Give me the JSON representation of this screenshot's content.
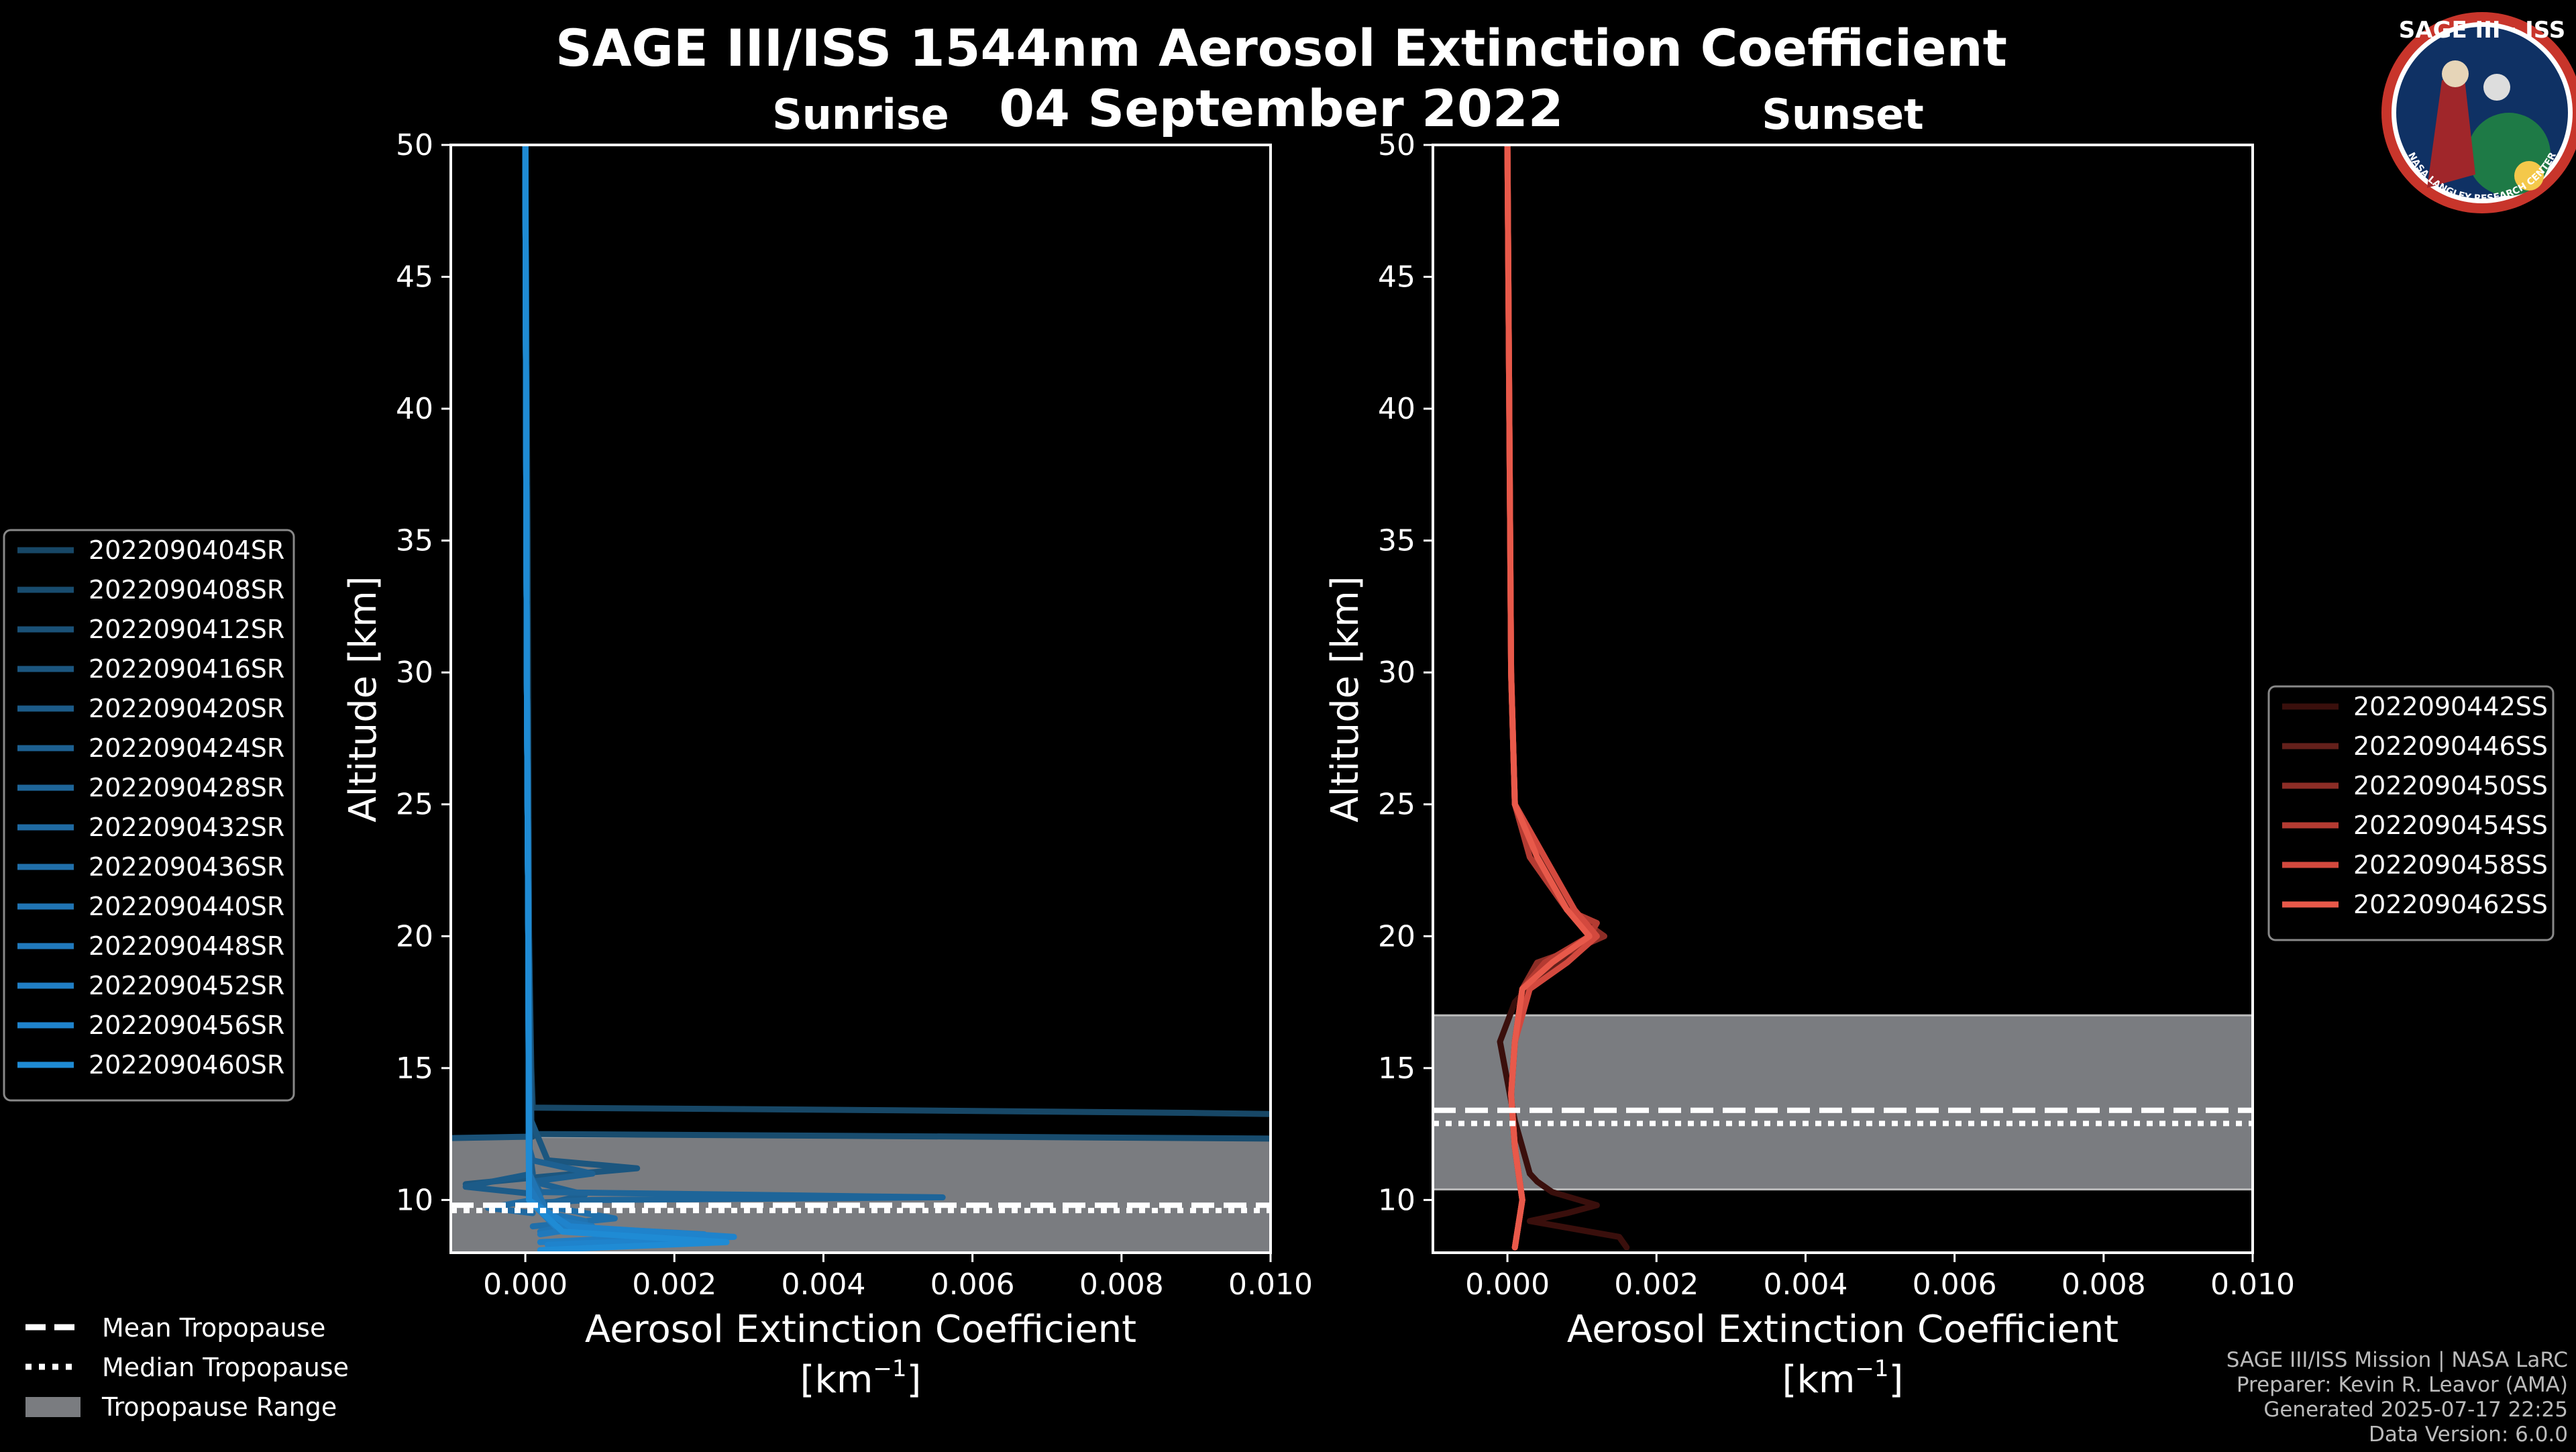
{
  "title": "SAGE III/ISS 1544nm Aerosol Extinction Coefficient",
  "date": "04 September 2022",
  "logo": {
    "text": "SAGE III · ISS",
    "ring_text": "NASA LANGLEY RESEARCH CENTER"
  },
  "footer": [
    "SAGE III/ISS Mission | NASA LaRC",
    "Preparer: Kevin R. Leavor (AMA)",
    "Generated 2025-07-17 22:25",
    "Data Version: 6.0.0"
  ],
  "tropopause_legend": [
    "Mean Tropopause",
    "Median Tropopause",
    "Tropopause Range"
  ],
  "colors": {
    "sunrise": "#1f9ad6",
    "sunset": "#e8594a",
    "range": "#7a7c80"
  },
  "chart_data": [
    {
      "type": "line",
      "subtitle": "Sunrise",
      "xlabel": "Aerosol Extinction Coefficient",
      "xunit_base": "[km",
      "xunit_exp": "−1",
      "xunit_end": "]",
      "ylabel": "Altitude [km]",
      "xlim": [
        -0.001,
        0.01
      ],
      "ylim": [
        8,
        50
      ],
      "xticks": [
        "0.000",
        "0.002",
        "0.004",
        "0.006",
        "0.008",
        "0.010"
      ],
      "xtick_values": [
        0,
        0.002,
        0.004,
        0.006,
        0.008,
        0.01
      ],
      "yticks": [
        10,
        15,
        20,
        25,
        30,
        35,
        40,
        45,
        50
      ],
      "tropopause": {
        "mean": 9.8,
        "median": 9.6,
        "range": [
          8.0,
          12.4
        ]
      },
      "series": [
        {
          "name": "2022090404SR",
          "color": "#174766",
          "alt": [
            50,
            35,
            20,
            15,
            13.5,
            13.4,
            13.3,
            13.2
          ],
          "ext": [
            0,
            3e-05,
            5e-05,
            8e-05,
            0.0001,
            0.005,
            0.009,
            0.0115
          ]
        },
        {
          "name": "2022090408SR",
          "color": "#184c6e",
          "alt": [
            50,
            30,
            20,
            13,
            12.5,
            12.4,
            12.3
          ],
          "ext": [
            0,
            2e-05,
            4e-05,
            8e-05,
            0.0001,
            0.006,
            0.0115
          ]
        },
        {
          "name": "2022090412SR",
          "color": "#1a5177",
          "alt": [
            50,
            30,
            20,
            13,
            12.4,
            12.3
          ],
          "ext": [
            0,
            2e-05,
            4e-05,
            6e-05,
            0.0001,
            -0.002
          ]
        },
        {
          "name": "2022090416SR",
          "color": "#1b567f",
          "alt": [
            50,
            30,
            20,
            13,
            11.5,
            11.2,
            10.9,
            10.6
          ],
          "ext": [
            0,
            2e-05,
            5e-05,
            8e-05,
            0.0003,
            0.0015,
            0.0003,
            -0.0008
          ]
        },
        {
          "name": "2022090420SR",
          "color": "#1c5b88",
          "alt": [
            50,
            30,
            20,
            12,
            11,
            10.5,
            10.2
          ],
          "ext": [
            0,
            2e-05,
            4e-05,
            5e-05,
            0.0001,
            -0.0008,
            0.0002
          ]
        },
        {
          "name": "2022090424SR",
          "color": "#1d6091",
          "alt": [
            50,
            30,
            20,
            12,
            11.5,
            11,
            10.7,
            10.2,
            9.8
          ],
          "ext": [
            0,
            2e-05,
            4e-05,
            5e-05,
            0.0001,
            0.0009,
            0.0001,
            0.0008,
            0.0002
          ]
        },
        {
          "name": "2022090428SR",
          "color": "#1e6599",
          "alt": [
            50,
            30,
            20,
            11,
            10.3,
            10.1,
            10.0,
            9.9
          ],
          "ext": [
            0,
            2e-05,
            4e-05,
            5e-05,
            0.0002,
            0.0056,
            0.0009,
            0.0002
          ]
        },
        {
          "name": "2022090432SR",
          "color": "#1f6aa2",
          "alt": [
            50,
            30,
            20,
            11,
            10,
            9.7,
            9.5
          ],
          "ext": [
            0,
            2e-05,
            4e-05,
            5e-05,
            0.0001,
            -0.0005,
            0.0001
          ]
        },
        {
          "name": "2022090436SR",
          "color": "#206faa",
          "alt": [
            50,
            30,
            20,
            11,
            9.8,
            9.3,
            9.0
          ],
          "ext": [
            0,
            2e-05,
            4e-05,
            6e-05,
            0.0002,
            0.0012,
            0.0001
          ]
        },
        {
          "name": "2022090440SR",
          "color": "#2074b3",
          "alt": [
            50,
            30,
            20,
            11,
            9.5,
            9.2,
            8.8
          ],
          "ext": [
            0,
            2e-05,
            4e-05,
            5e-05,
            0.0003,
            0.0008,
            0.0002
          ]
        },
        {
          "name": "2022090448SR",
          "color": "#2079bc",
          "alt": [
            50,
            30,
            20,
            10.5,
            9.3,
            9.0,
            8.7
          ],
          "ext": [
            0,
            2e-05,
            4e-05,
            5e-05,
            0.0003,
            0.0009,
            0.0002
          ]
        },
        {
          "name": "2022090452SR",
          "color": "#207ec4",
          "alt": [
            50,
            30,
            20,
            10,
            9.0,
            8.7,
            8.4
          ],
          "ext": [
            0,
            2e-05,
            4e-05,
            5e-05,
            0.0004,
            0.0024,
            0.0002
          ]
        },
        {
          "name": "2022090456SR",
          "color": "#1f83cc",
          "alt": [
            50,
            30,
            20,
            10,
            9.0,
            8.6,
            8.3
          ],
          "ext": [
            0,
            2e-05,
            4e-05,
            5e-05,
            0.0006,
            0.0028,
            0.0003
          ]
        },
        {
          "name": "2022090460SR",
          "color": "#1f8bd4",
          "alt": [
            50,
            30,
            20,
            10,
            8.8,
            8.4,
            8.1
          ],
          "ext": [
            0,
            2e-05,
            4e-05,
            5e-05,
            0.0005,
            0.0027,
            0.0002
          ]
        }
      ]
    },
    {
      "type": "line",
      "subtitle": "Sunset",
      "xlabel": "Aerosol Extinction Coefficient",
      "xunit_base": "[km",
      "xunit_exp": "−1",
      "xunit_end": "]",
      "ylabel": "Altitude [km]",
      "xlim": [
        -0.001,
        0.01
      ],
      "ylim": [
        8,
        50
      ],
      "xticks": [
        "0.000",
        "0.002",
        "0.004",
        "0.006",
        "0.008",
        "0.010"
      ],
      "xtick_values": [
        0,
        0.002,
        0.004,
        0.006,
        0.008,
        0.01
      ],
      "yticks": [
        10,
        15,
        20,
        25,
        30,
        35,
        40,
        45,
        50
      ],
      "tropopause": {
        "mean": 13.4,
        "median": 12.9,
        "range": [
          10.4,
          17.0
        ]
      },
      "series": [
        {
          "name": "2022090442SS",
          "color": "#3a0f0c",
          "alt": [
            50,
            30,
            25,
            23,
            21,
            20,
            19,
            17.5,
            16,
            13,
            11,
            10.7,
            10.3,
            9.8,
            9.5,
            9.2,
            8.6,
            8.2
          ],
          "ext": [
            0,
            5e-05,
            0.0001,
            0.0004,
            0.0008,
            0.0011,
            0.0006,
            0.0001,
            -0.0001,
            0.0001,
            0.0003,
            0.0004,
            0.0006,
            0.0012,
            0.0008,
            0.0003,
            0.0015,
            0.0016
          ]
        },
        {
          "name": "2022090446SS",
          "color": "#64201b",
          "alt": [
            50,
            30,
            25,
            23,
            21,
            20,
            19,
            18,
            16,
            14,
            12,
            10,
            8.2
          ],
          "ext": [
            0,
            5e-05,
            0.0001,
            0.0005,
            0.0009,
            0.0012,
            0.0007,
            0.0002,
            0.0001,
            5e-05,
            0.0001,
            0.0002,
            0.0001
          ]
        },
        {
          "name": "2022090450SS",
          "color": "#8c2d26",
          "alt": [
            50,
            30,
            25,
            23,
            21,
            20,
            19.5,
            19,
            18,
            16,
            14,
            12,
            10,
            8.2
          ],
          "ext": [
            0,
            5e-05,
            0.0001,
            0.0004,
            0.0008,
            0.0013,
            0.0009,
            0.0004,
            0.0002,
            0.0001,
            5e-05,
            0.0001,
            0.0002,
            0.0001
          ]
        },
        {
          "name": "2022090454SS",
          "color": "#b43b32",
          "alt": [
            50,
            30,
            25,
            23,
            21,
            20.5,
            20,
            19,
            18,
            16,
            14,
            12,
            10,
            8.2
          ],
          "ext": [
            0,
            5e-05,
            0.0001,
            0.0003,
            0.0008,
            0.0012,
            0.0011,
            0.0005,
            0.0002,
            0.0001,
            5e-05,
            0.0001,
            0.0002,
            0.0001
          ]
        },
        {
          "name": "2022090458SS",
          "color": "#d3493e",
          "alt": [
            50,
            30,
            25,
            23,
            21,
            20,
            19,
            18,
            16,
            14,
            12,
            10,
            8.2
          ],
          "ext": [
            0,
            5e-05,
            0.0001,
            0.0005,
            0.0009,
            0.0012,
            0.0008,
            0.0003,
            0.0001,
            5e-05,
            0.0001,
            0.0002,
            0.0001
          ]
        },
        {
          "name": "2022090462SS",
          "color": "#e8594a",
          "alt": [
            50,
            30,
            25,
            23,
            21,
            20,
            19,
            18,
            16,
            14,
            12,
            10,
            8.2
          ],
          "ext": [
            0,
            5e-05,
            0.0001,
            0.0004,
            0.0008,
            0.0011,
            0.0006,
            0.0002,
            0.0001,
            5e-05,
            0.0001,
            0.0002,
            0.0001
          ]
        }
      ]
    }
  ]
}
